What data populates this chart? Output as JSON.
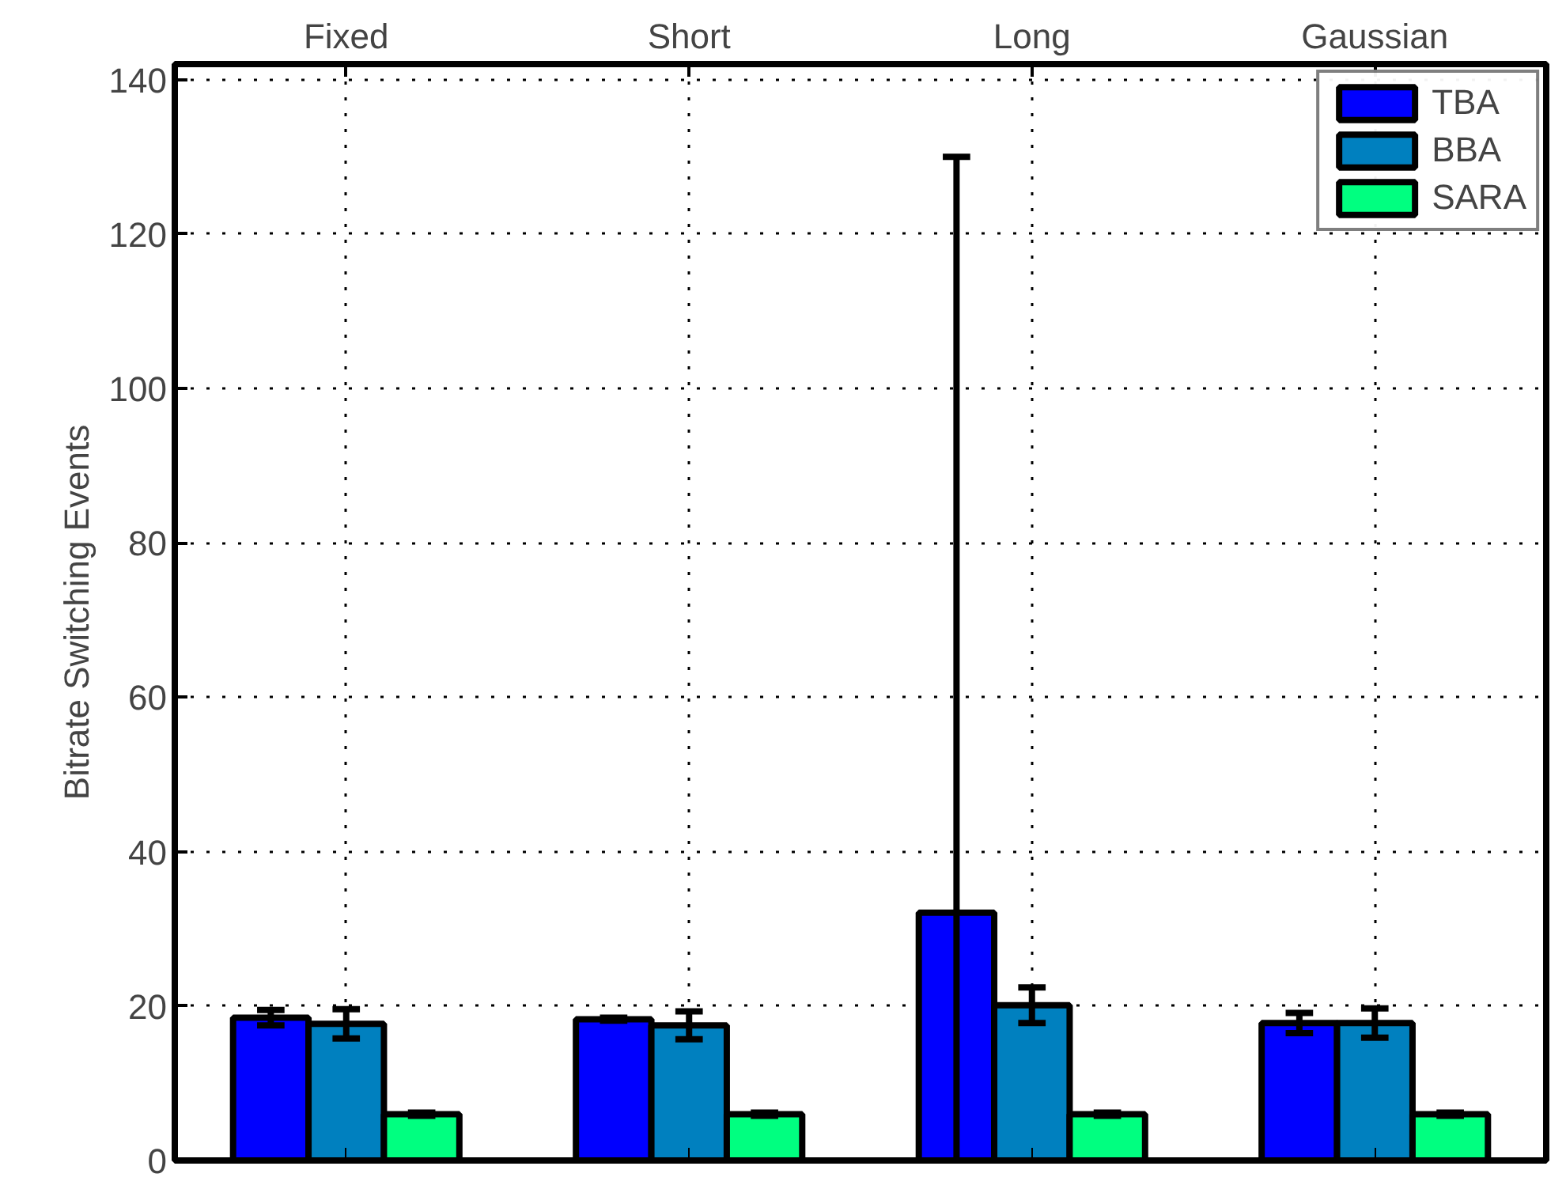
{
  "chart_data": {
    "type": "bar",
    "ylabel": "Bitrate Switching Events",
    "categories": [
      "Fixed",
      "Short",
      "Long",
      "Gaussian"
    ],
    "series": [
      {
        "name": "TBA",
        "color": "#0000ff",
        "values": [
          18.5,
          18.3,
          32.1,
          17.8
        ],
        "errors": [
          1,
          0.2,
          [
            0,
            130
          ],
          1.3
        ]
      },
      {
        "name": "BBA",
        "color": "#0080bf",
        "values": [
          17.7,
          17.5,
          20.1,
          17.8
        ],
        "errors": [
          1.9,
          1.8,
          2.3,
          1.9
        ]
      },
      {
        "name": "SARA",
        "color": "#00ff80",
        "values": [
          6,
          6,
          6,
          6
        ],
        "errors": [
          0.2,
          0.2,
          0.2,
          0.2
        ]
      }
    ],
    "ylim": [
      0,
      142
    ],
    "yticks": [
      0,
      20,
      40,
      60,
      80,
      100,
      120,
      140
    ],
    "grid": true,
    "legend": "top right"
  }
}
